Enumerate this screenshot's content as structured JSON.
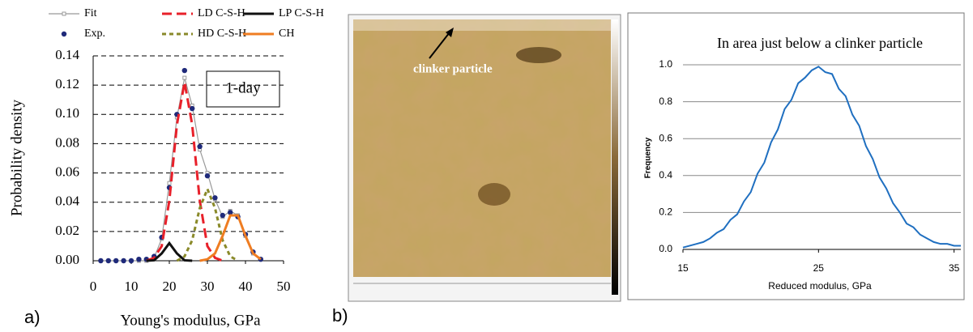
{
  "panel_labels": [
    "a)",
    "b)"
  ],
  "image": {
    "annotation": "clinker particle"
  },
  "chart_data": [
    {
      "type": "line",
      "x_label": "Young's modulus, GPa",
      "y_label": "Probability density",
      "annotation": "1-day",
      "legend": "top",
      "grid": true,
      "xlim": [
        0,
        50
      ],
      "ylim": [
        0,
        0.14
      ],
      "xticks": [
        0,
        10,
        20,
        30,
        40,
        50
      ],
      "yticks": [
        {
          "value": 0,
          "label": "0.00"
        },
        {
          "value": 0.02,
          "label": "0.02"
        },
        {
          "value": 0.04,
          "label": "0.04"
        },
        {
          "value": 0.06,
          "label": "0.06"
        },
        {
          "value": 0.08,
          "label": "0.08"
        },
        {
          "value": 0.1,
          "label": "0.10"
        },
        {
          "value": 0.12,
          "label": "0.12"
        },
        {
          "value": 0.14,
          "label": "0.14"
        }
      ],
      "series": [
        {
          "name": "Fit",
          "color": "#999999",
          "dash": "solid",
          "marker": "square",
          "line": true,
          "x": [
            2,
            4,
            6,
            8,
            10,
            12,
            14,
            16,
            18,
            20,
            22,
            24,
            26,
            28,
            30,
            32,
            34,
            36,
            38,
            40,
            42,
            44
          ],
          "values": [
            0,
            0,
            0,
            0,
            0,
            0,
            0,
            0.002,
            0.015,
            0.053,
            0.098,
            0.125,
            0.106,
            0.076,
            0.06,
            0.042,
            0.03,
            0.034,
            0.031,
            0.017,
            0.005,
            0.001
          ]
        },
        {
          "name": "Exp.",
          "color": "#1f2a7a",
          "dash": "none",
          "marker": "circle",
          "line": false,
          "x": [
            2,
            4,
            6,
            8,
            10,
            12,
            14,
            16,
            18,
            20,
            22,
            24,
            26,
            28,
            30,
            32,
            34,
            36,
            38,
            40,
            42,
            44
          ],
          "values": [
            0,
            0,
            0,
            0,
            0,
            0.001,
            0.001,
            0.003,
            0.016,
            0.05,
            0.1,
            0.13,
            0.104,
            0.078,
            0.058,
            0.043,
            0.031,
            0.033,
            0.03,
            0.018,
            0.006,
            0.001
          ]
        },
        {
          "name": "LD C-S-H",
          "color": "#e8202a",
          "dash": "dashed",
          "marker": "none",
          "line": true,
          "x": [
            14,
            16,
            18,
            20,
            22,
            24,
            26,
            28,
            30,
            32,
            34
          ],
          "values": [
            0,
            0.002,
            0.01,
            0.041,
            0.093,
            0.122,
            0.093,
            0.041,
            0.01,
            0.002,
            0
          ]
        },
        {
          "name": "HD C-S-H",
          "color": "#8a8a2a",
          "dash": "dotted",
          "marker": "none",
          "line": true,
          "x": [
            22,
            24,
            26,
            28,
            30,
            32,
            34,
            36,
            38
          ],
          "values": [
            0,
            0.003,
            0.014,
            0.036,
            0.049,
            0.036,
            0.014,
            0.003,
            0
          ]
        },
        {
          "name": "LP C-S-H",
          "color": "#111111",
          "dash": "solid",
          "marker": "none",
          "line": true,
          "x": [
            14,
            16,
            18,
            20,
            22,
            24,
            26
          ],
          "values": [
            0,
            0.0003,
            0.005,
            0.012,
            0.005,
            0.0003,
            0
          ]
        },
        {
          "name": "CH",
          "color": "#ef7d22",
          "dash": "solid",
          "marker": "none",
          "line": true,
          "x": [
            28,
            30,
            32,
            34,
            36,
            38,
            40,
            42,
            44
          ],
          "values": [
            0,
            0.001,
            0.005,
            0.017,
            0.031,
            0.031,
            0.017,
            0.005,
            0.001
          ]
        }
      ]
    },
    {
      "type": "line",
      "title": "In area just below a clinker particle",
      "x_label": "Reduced modulus, GPa",
      "y_label": "Frequency",
      "grid": true,
      "xlim": [
        15,
        35.5
      ],
      "ylim": [
        0,
        1
      ],
      "xticks": [
        15,
        25,
        35
      ],
      "yticks": [
        {
          "value": 0,
          "label": "0.0"
        },
        0.2,
        0.4,
        0.6,
        0.8,
        {
          "value": 1,
          "label": "1.0"
        }
      ],
      "series": [
        {
          "color": "#1f6fc0",
          "x": [
            15,
            15.5,
            16,
            16.5,
            17,
            17.5,
            18,
            18.5,
            19,
            19.5,
            20,
            20.5,
            21,
            21.5,
            22,
            22.5,
            23,
            23.5,
            24,
            24.5,
            25,
            25.5,
            26,
            26.5,
            27,
            27.5,
            28,
            28.5,
            29,
            29.5,
            30,
            30.5,
            31,
            31.5,
            32,
            32.5,
            33,
            33.5,
            34,
            34.5,
            35,
            35.5
          ],
          "values": [
            0.01,
            0.02,
            0.03,
            0.04,
            0.06,
            0.09,
            0.11,
            0.16,
            0.19,
            0.26,
            0.31,
            0.41,
            0.47,
            0.58,
            0.65,
            0.76,
            0.81,
            0.9,
            0.93,
            0.97,
            0.99,
            0.96,
            0.95,
            0.87,
            0.83,
            0.73,
            0.67,
            0.56,
            0.49,
            0.39,
            0.33,
            0.25,
            0.2,
            0.14,
            0.12,
            0.08,
            0.06,
            0.04,
            0.03,
            0.03,
            0.02,
            0.02
          ]
        }
      ]
    }
  ]
}
